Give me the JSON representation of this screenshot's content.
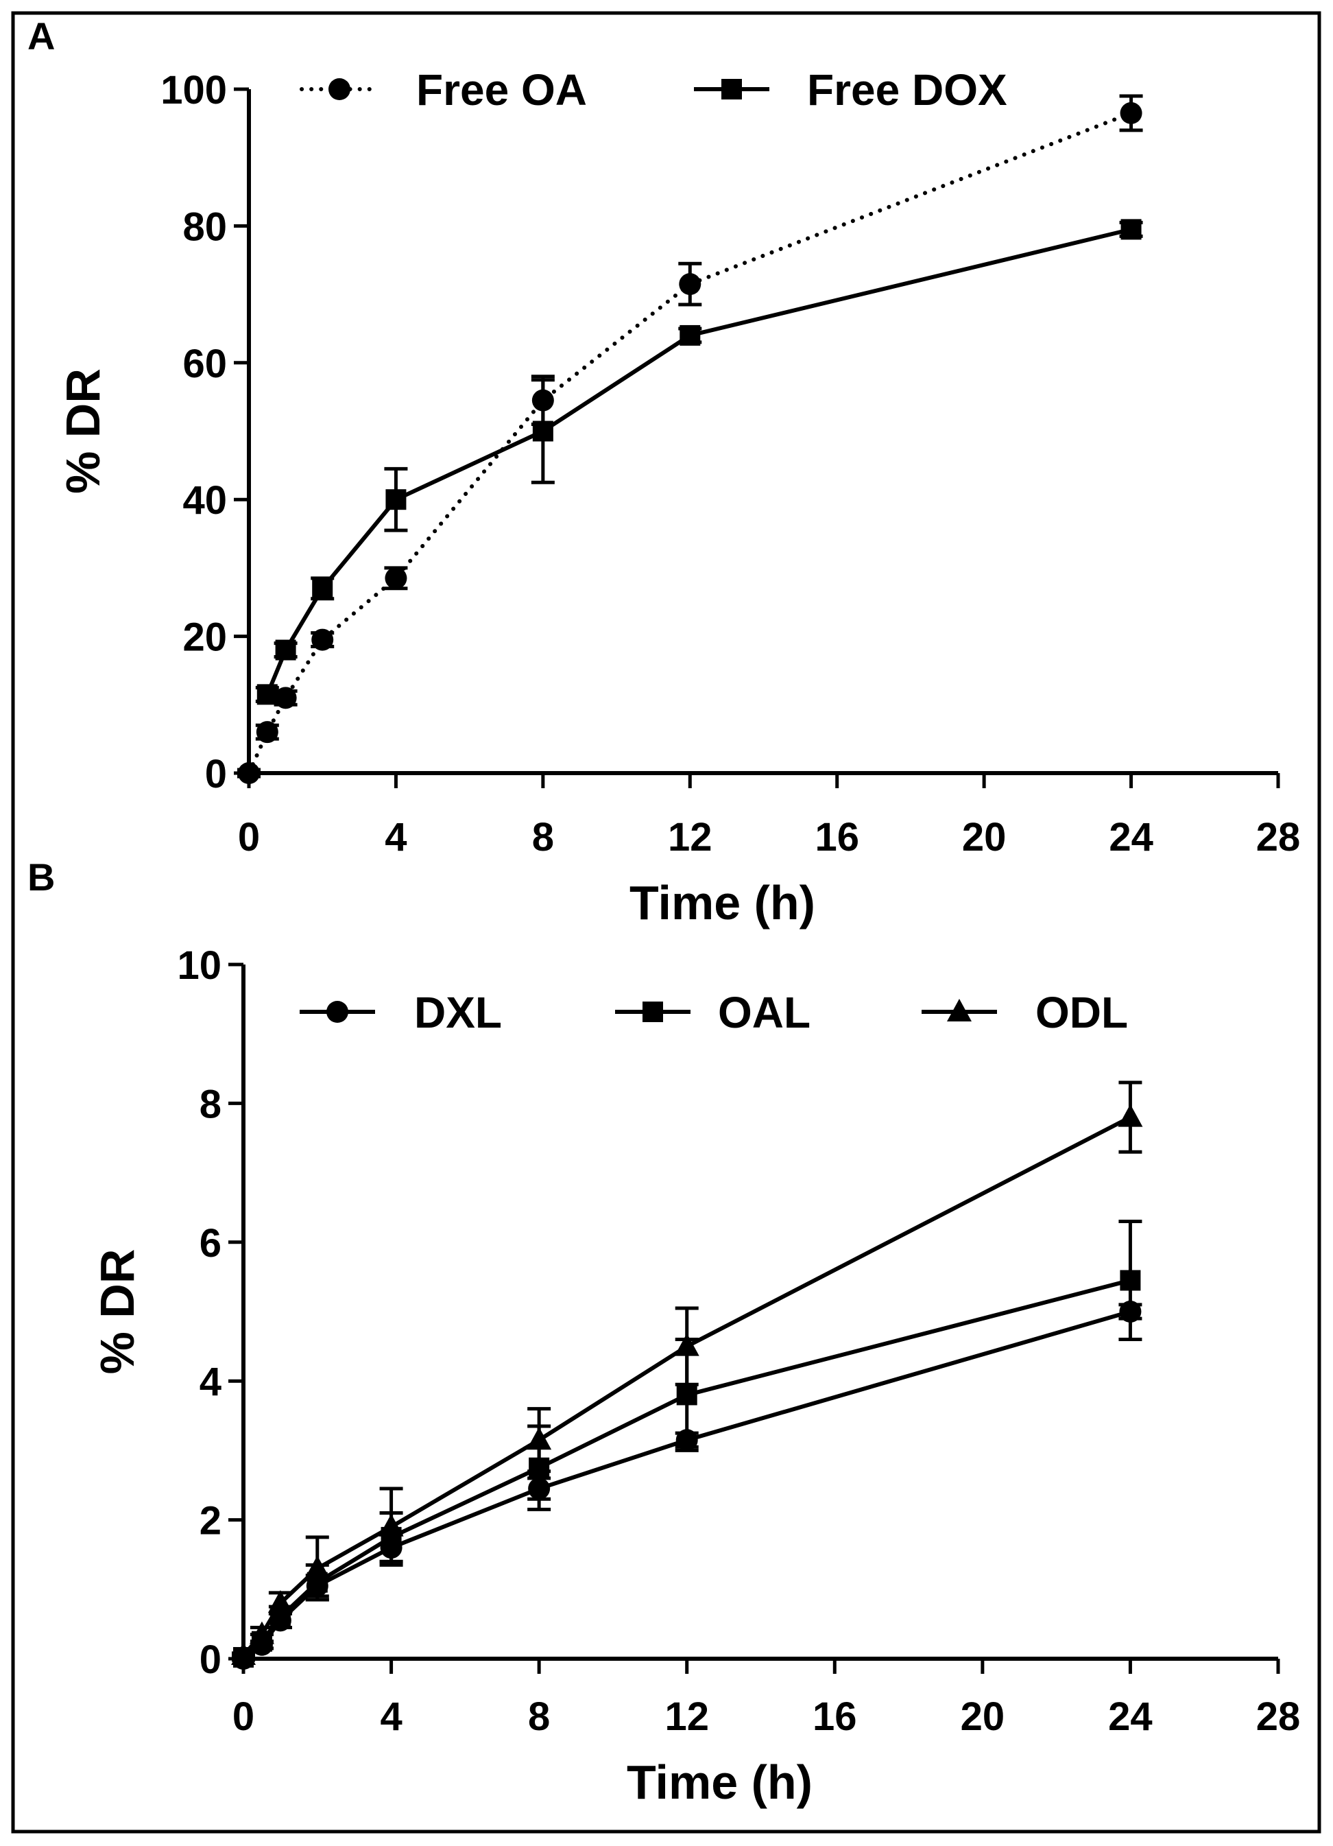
{
  "chart_data": [
    {
      "panel": "A",
      "type": "line",
      "xlabel": "Time (h)",
      "ylabel": "% DR",
      "xlim": [
        0,
        28
      ],
      "ylim": [
        0,
        100
      ],
      "xticks": [
        0,
        4,
        8,
        12,
        16,
        20,
        24,
        28
      ],
      "yticks": [
        0,
        20,
        40,
        60,
        80,
        100
      ],
      "legend_position": "top",
      "series": [
        {
          "name": "Free OA",
          "marker": "circle",
          "line": "dotted",
          "x": [
            0,
            0.5,
            1,
            2,
            4,
            8,
            12,
            24
          ],
          "y": [
            0,
            6,
            11,
            19.5,
            28.5,
            54.5,
            71.5,
            96.5
          ],
          "err": [
            0.5,
            1,
            1,
            1,
            1.5,
            3.5,
            3,
            2.5
          ]
        },
        {
          "name": "Free DOX",
          "marker": "square",
          "line": "solid",
          "x": [
            0.5,
            1,
            2,
            4,
            8,
            12,
            24
          ],
          "y": [
            11.5,
            18,
            27,
            40,
            50,
            64,
            79.5
          ],
          "err": [
            1,
            1,
            1.5,
            4.5,
            7.5,
            1,
            1
          ]
        }
      ]
    },
    {
      "panel": "B",
      "type": "line",
      "xlabel": "Time (h)",
      "ylabel": "% DR",
      "xlim": [
        0,
        28
      ],
      "ylim": [
        0,
        10
      ],
      "xticks": [
        0,
        4,
        8,
        12,
        16,
        20,
        24,
        28
      ],
      "yticks": [
        0,
        2,
        4,
        6,
        8,
        10
      ],
      "legend_position": "top",
      "series": [
        {
          "name": "DXL",
          "marker": "circle",
          "line": "solid",
          "x": [
            0,
            0.5,
            1,
            2,
            4,
            8,
            12,
            24
          ],
          "y": [
            0,
            0.2,
            0.55,
            1.05,
            1.6,
            2.45,
            3.15,
            5.0
          ],
          "err": [
            0.02,
            0.05,
            0.1,
            0.15,
            0.2,
            0.15,
            0.1,
            0.1
          ]
        },
        {
          "name": "OAL",
          "marker": "square",
          "line": "solid",
          "x": [
            0,
            0.5,
            1,
            2,
            4,
            8,
            12,
            24
          ],
          "y": [
            0.02,
            0.25,
            0.6,
            1.1,
            1.75,
            2.75,
            3.8,
            5.45
          ],
          "err": [
            0.02,
            0.1,
            0.15,
            0.25,
            0.35,
            0.6,
            0.8,
            0.85
          ]
        },
        {
          "name": "ODL",
          "marker": "triangle",
          "line": "solid",
          "x": [
            0,
            0.5,
            1,
            2,
            4,
            8,
            12,
            24
          ],
          "y": [
            0.05,
            0.35,
            0.8,
            1.3,
            1.9,
            3.15,
            4.5,
            7.8
          ],
          "err": [
            0.03,
            0.1,
            0.15,
            0.45,
            0.55,
            0.45,
            0.55,
            0.5
          ]
        }
      ]
    }
  ]
}
